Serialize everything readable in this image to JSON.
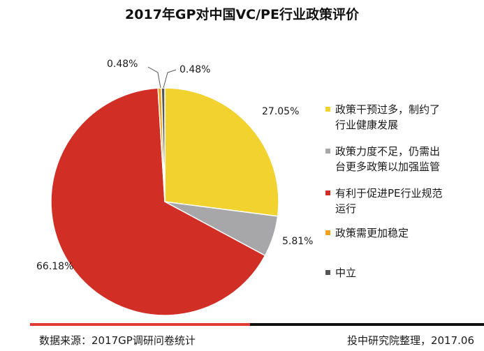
{
  "chart_data": {
    "type": "pie",
    "title": "2017年GP对中国VC/PE行业政策评价",
    "slices": [
      {
        "name": "政策干预过多，制约了行业健康发展",
        "value": 27.05,
        "label": "27.05%",
        "color": "#f2d22e",
        "legend_lines": [
          "政策干预过多，制约了",
          "行业健康发展"
        ]
      },
      {
        "name": "政策力度不足，仍需出台更多政策以加强监管",
        "value": 5.81,
        "label": "5.81%",
        "color": "#a7a7a9",
        "legend_lines": [
          "政策力度不足，仍需出",
          "台更多政策以加强监管"
        ]
      },
      {
        "name": "有利于促进PE行业规范运行",
        "value": 66.18,
        "label": "66.18%",
        "color": "#d12f26",
        "legend_lines": [
          "有利于促进PE行业规范",
          "运行"
        ]
      },
      {
        "name": "政策需更加稳定",
        "value": 0.48,
        "label": "0.48%",
        "color": "#f0a21c",
        "legend_lines": [
          "政策需更加稳定"
        ]
      },
      {
        "name": "中立",
        "value": 0.48,
        "label": "0.48%",
        "color": "#555555",
        "legend_lines": [
          "中立"
        ]
      }
    ]
  },
  "source": {
    "left": "数据来源：2017GP调研问卷统计",
    "right": "投中研究院整理，2017.06"
  }
}
